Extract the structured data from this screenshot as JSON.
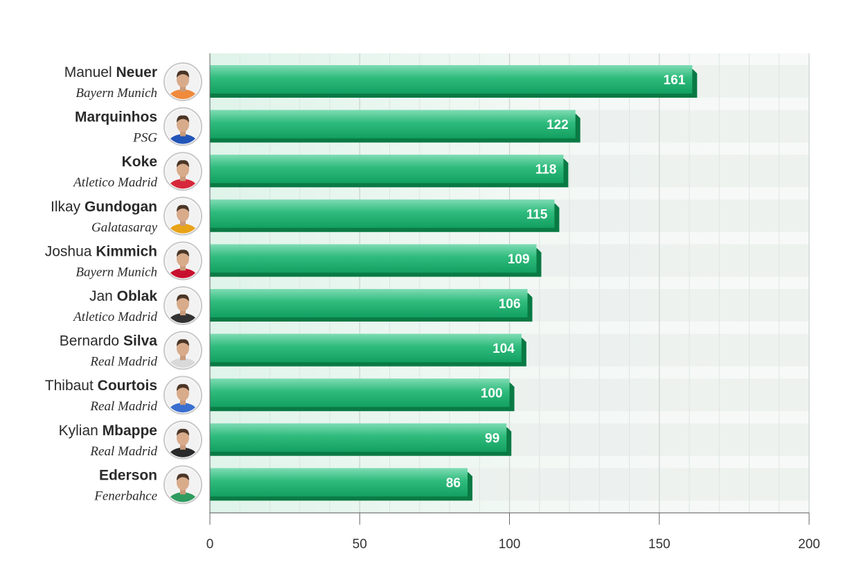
{
  "chart_data": {
    "type": "bar",
    "orientation": "horizontal",
    "title": "",
    "xlabel": "",
    "ylabel": "",
    "xlim": [
      0,
      200
    ],
    "x_ticks": [
      "0",
      "50",
      "100",
      "150",
      "200"
    ],
    "grid": true,
    "categories": [
      {
        "first": "Manuel",
        "last": "Neuer",
        "team": "Bayern Munich",
        "avatar": "player-avatar-neuer"
      },
      {
        "first": "",
        "last": "Marquinhos",
        "team": "PSG",
        "avatar": "player-avatar-marquinhos"
      },
      {
        "first": "",
        "last": "Koke",
        "team": "Atletico Madrid",
        "avatar": "player-avatar-koke"
      },
      {
        "first": "Ilkay",
        "last": "Gundogan",
        "team": "Galatasaray",
        "avatar": "player-avatar-gundogan"
      },
      {
        "first": "Joshua",
        "last": "Kimmich",
        "team": "Bayern Munich",
        "avatar": "player-avatar-kimmich"
      },
      {
        "first": "Jan",
        "last": "Oblak",
        "team": "Atletico Madrid",
        "avatar": "player-avatar-oblak"
      },
      {
        "first": "Bernardo",
        "last": "Silva",
        "team": "Real Madrid",
        "avatar": "player-avatar-silva"
      },
      {
        "first": "Thibaut",
        "last": "Courtois",
        "team": "Real Madrid",
        "avatar": "player-avatar-courtois"
      },
      {
        "first": "Kylian",
        "last": "Mbappe",
        "team": "Real Madrid",
        "avatar": "player-avatar-mbappe"
      },
      {
        "first": "",
        "last": "Ederson",
        "team": "Fenerbahce",
        "avatar": "player-avatar-ederson"
      }
    ],
    "values": [
      161,
      122,
      118,
      115,
      109,
      106,
      104,
      100,
      99,
      86
    ],
    "value_labels": [
      "161",
      "122",
      "118",
      "115",
      "109",
      "106",
      "104",
      "100",
      "99",
      "86"
    ],
    "colors": {
      "bar_top": "#5fd3a1",
      "bar_mid": "#1fae6e",
      "bar_shadow": "#0a7a44",
      "track": "#e9efec",
      "background_tint": "#e3f6ee"
    },
    "shirt_colors": [
      "#f08a3c",
      "#2255b8",
      "#d6283a",
      "#e8a317",
      "#c8102e",
      "#333333",
      "#d9d9d9",
      "#3a6fd0",
      "#2a2a2a",
      "#2f9b5f"
    ]
  }
}
